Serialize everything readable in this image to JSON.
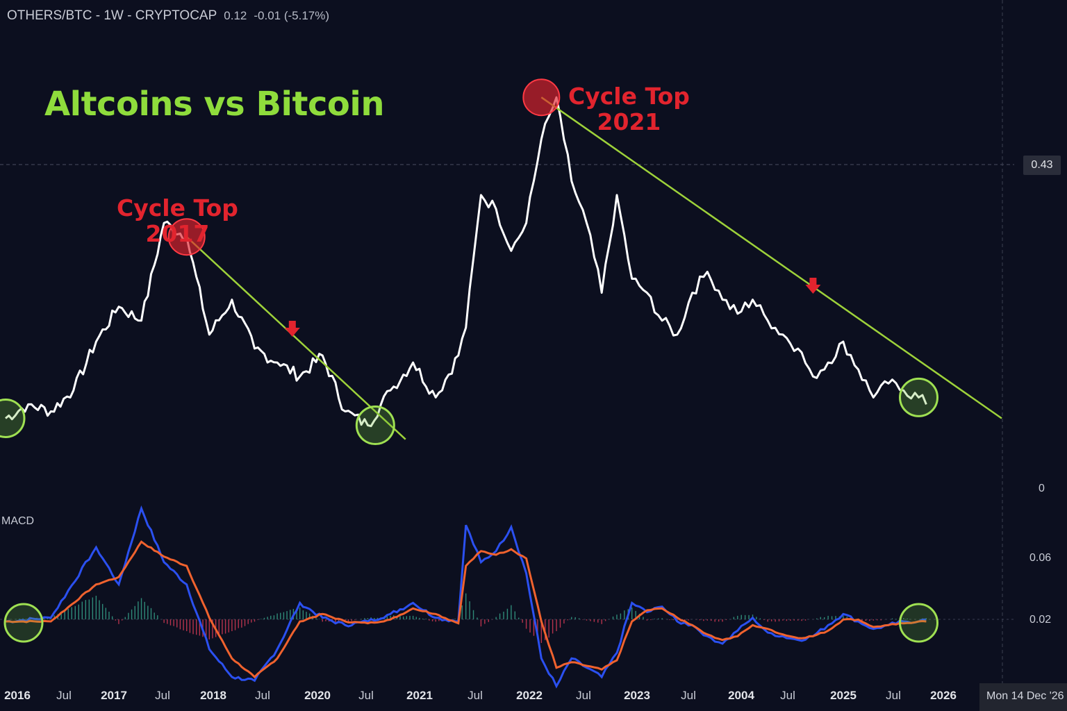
{
  "header": {
    "symbol": "OTHERS/BTC - 1W - CRYPTOCAP",
    "last": "0.12",
    "change": "-0.01 (-5.17%)"
  },
  "title": "Altcoins vs Bitcoin",
  "annotations": [
    {
      "line1": "Cycle Top",
      "line2": "2017"
    },
    {
      "line1": "Cycle Top",
      "line2": "2021"
    }
  ],
  "macd_label": "MACD",
  "price_axis": {
    "crosshair_label": "0.43",
    "zero_label": "0"
  },
  "macd_axis": [
    "0.06",
    "0.02"
  ],
  "x_axis": {
    "ticks": [
      "2016",
      "Jul",
      "2017",
      "Jul",
      "2018",
      "Jul",
      "2020",
      "Jul",
      "2021",
      "Jul",
      "2022",
      "Jul",
      "2023",
      "Jul",
      "2004",
      "Jul",
      "2025",
      "Jul",
      "2026"
    ],
    "crosshair_date": "Mon 14 Dec '26"
  },
  "colors": {
    "background": "#0c0f1f",
    "price_line": "#ffffff",
    "title": "#8fdc3c",
    "trendline": "#9ed23a",
    "cycle_top": "#e2242e",
    "macd_line": "#2b50f0",
    "signal_line": "#f0622e",
    "hist_positive": "#2f8a78",
    "hist_negative": "#b5334d"
  },
  "chart_data": [
    {
      "type": "line",
      "name": "OTHERS/BTC",
      "x": [
        "2015-12",
        "2016-03",
        "2016-06",
        "2016-09",
        "2016-12",
        "2017-03",
        "2017-06",
        "2017-09",
        "2017-12",
        "2018-03",
        "2018-06",
        "2018-09",
        "2018-12",
        "2019-03",
        "2019-06",
        "2019-09",
        "2019-12",
        "2020-03",
        "2020-06",
        "2020-09",
        "2020-12",
        "2021-01",
        "2021-03",
        "2021-05",
        "2021-07",
        "2021-09",
        "2021-11",
        "2022-01",
        "2022-03",
        "2022-05",
        "2022-07",
        "2022-09",
        "2022-11",
        "2023-01",
        "2023-03",
        "2023-05",
        "2023-07",
        "2023-09",
        "2023-11",
        "2024-01",
        "2024-03",
        "2024-05",
        "2024-07",
        "2024-09",
        "2024-11",
        "2025-01",
        "2025-03",
        "2025-05",
        "2025-07",
        "2025-09",
        "2025-11",
        "2026-01",
        "2026-02"
      ],
      "y": [
        0.1,
        0.12,
        0.11,
        0.14,
        0.21,
        0.26,
        0.24,
        0.38,
        0.36,
        0.22,
        0.27,
        0.2,
        0.18,
        0.16,
        0.19,
        0.11,
        0.09,
        0.14,
        0.18,
        0.13,
        0.19,
        0.23,
        0.42,
        0.4,
        0.34,
        0.38,
        0.5,
        0.56,
        0.44,
        0.38,
        0.28,
        0.42,
        0.3,
        0.28,
        0.24,
        0.22,
        0.28,
        0.31,
        0.27,
        0.25,
        0.27,
        0.24,
        0.22,
        0.2,
        0.16,
        0.18,
        0.21,
        0.17,
        0.13,
        0.15,
        0.14,
        0.13,
        0.12
      ],
      "ylim": [
        0,
        0.6
      ],
      "markers": {
        "cycle_tops": [
          {
            "x": "2017-12",
            "y": 0.36
          },
          {
            "x": "2021-11",
            "y": 0.56
          }
        ],
        "bottoms": [
          {
            "x": "2015-12",
            "y": 0.1
          },
          {
            "x": "2020-01",
            "y": 0.09
          },
          {
            "x": "2026-01",
            "y": 0.13
          }
        ],
        "down_arrows": [
          "2019-02",
          "2024-11"
        ]
      },
      "trendlines": [
        {
          "from": {
            "x": "2017-12",
            "y": 0.36
          },
          "to": {
            "x": "2020-05",
            "y": 0.07
          }
        },
        {
          "from": {
            "x": "2021-11",
            "y": 0.56
          },
          "to": {
            "x": "2026-12",
            "y": 0.1
          }
        }
      ]
    },
    {
      "type": "line",
      "name": "MACD",
      "x": [
        "2015-12",
        "2016-06",
        "2016-12",
        "2017-03",
        "2017-06",
        "2017-09",
        "2017-12",
        "2018-03",
        "2018-06",
        "2018-09",
        "2018-12",
        "2019-03",
        "2019-06",
        "2019-09",
        "2019-12",
        "2020-03",
        "2020-06",
        "2020-09",
        "2020-12",
        "2021-01",
        "2021-03",
        "2021-05",
        "2021-07",
        "2021-09",
        "2021-11",
        "2022-01",
        "2022-03",
        "2022-05",
        "2022-07",
        "2022-09",
        "2022-11",
        "2023-01",
        "2023-03",
        "2023-05",
        "2023-07",
        "2023-09",
        "2023-11",
        "2024-01",
        "2024-03",
        "2024-05",
        "2024-07",
        "2024-09",
        "2024-11",
        "2025-01",
        "2025-03",
        "2025-05",
        "2025-07",
        "2025-09",
        "2025-11",
        "2026-01",
        "2026-02"
      ],
      "series": [
        {
          "values": [
            0.02,
            0.022,
            0.06,
            0.04,
            0.081,
            0.052,
            0.04,
            0.005,
            -0.01,
            -0.012,
            0.005,
            0.03,
            0.022,
            0.018,
            0.02,
            0.024,
            0.03,
            0.022,
            0.02,
            0.072,
            0.052,
            0.058,
            0.071,
            0.046,
            0.0,
            -0.015,
            0.0,
            -0.005,
            -0.01,
            0.003,
            0.03,
            0.025,
            0.028,
            0.02,
            0.018,
            0.012,
            0.008,
            0.015,
            0.022,
            0.014,
            0.012,
            0.01,
            0.012,
            0.018,
            0.024,
            0.02,
            0.016,
            0.018,
            0.02,
            0.02,
            0.021
          ]
        },
        {
          "values": [
            0.02,
            0.02,
            0.04,
            0.044,
            0.063,
            0.055,
            0.05,
            0.022,
            0.0,
            -0.01,
            0.0,
            0.02,
            0.024,
            0.02,
            0.019,
            0.021,
            0.027,
            0.024,
            0.019,
            0.05,
            0.058,
            0.056,
            0.059,
            0.054,
            0.02,
            -0.005,
            -0.002,
            -0.004,
            -0.006,
            -0.001,
            0.02,
            0.026,
            0.027,
            0.022,
            0.018,
            0.013,
            0.01,
            0.012,
            0.018,
            0.016,
            0.013,
            0.011,
            0.012,
            0.015,
            0.021,
            0.021,
            0.017,
            0.018,
            0.019,
            0.02,
            0.02
          ]
        }
      ],
      "ylim": [
        -0.01,
        0.08
      ]
    }
  ]
}
